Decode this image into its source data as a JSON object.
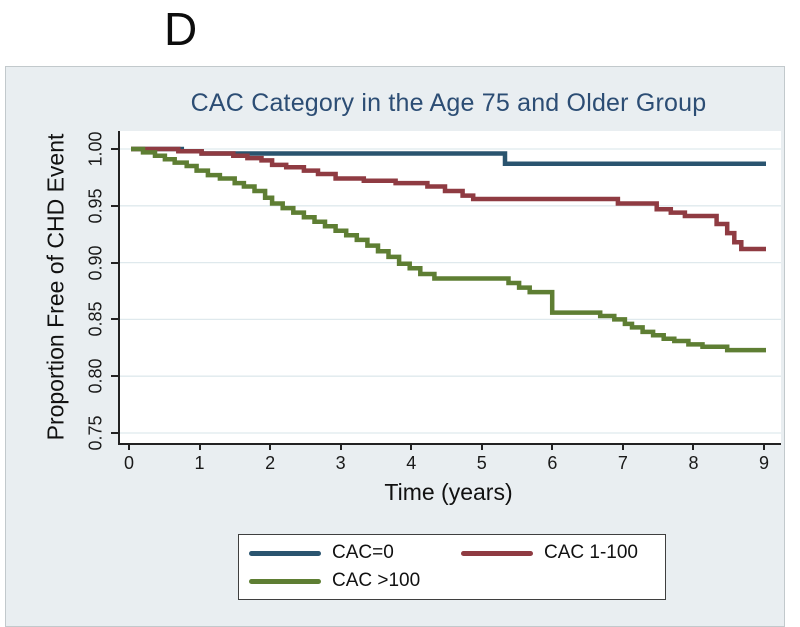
{
  "panel_label": "D",
  "figure": {
    "background_color": "#e9eef1",
    "plot_background_color": "#ffffff",
    "title_color": "#2c4d74",
    "gridline_color": "#dfe9ed",
    "axis_color": "#222222"
  },
  "chart_data": {
    "type": "line",
    "subtype": "kaplan-meier-step",
    "title": "CAC Category in the Age 75 and Older Group",
    "xlabel": "Time (years)",
    "ylabel": "Proportion Free of CHD Event",
    "xlim": [
      0,
      9
    ],
    "ylim": [
      0.75,
      1.0
    ],
    "x_ticks": [
      0,
      1,
      2,
      3,
      4,
      5,
      6,
      7,
      8,
      9
    ],
    "x_tick_labels": [
      "0",
      "1",
      "2",
      "3",
      "4",
      "5",
      "6",
      "7",
      "8",
      "9"
    ],
    "y_ticks": [
      1.0,
      0.95,
      0.9,
      0.85,
      0.8,
      0.75
    ],
    "y_tick_labels": [
      "1.00",
      "0.95",
      "0.90",
      "0.85",
      "0.80",
      "0.75"
    ],
    "grid": "horizontal",
    "legend_position": "below",
    "series": [
      {
        "name": "CAC=0",
        "color": "#2a546f",
        "points": [
          [
            0,
            1.0
          ],
          [
            0.72,
            0.998
          ],
          [
            1.0,
            0.996
          ],
          [
            5.3,
            0.987
          ],
          [
            9,
            0.987
          ]
        ]
      },
      {
        "name": "CAC 1-100",
        "color": "#8f3b42",
        "points": [
          [
            0,
            1.0
          ],
          [
            0.67,
            0.998
          ],
          [
            1.0,
            0.996
          ],
          [
            1.45,
            0.994
          ],
          [
            1.65,
            0.992
          ],
          [
            1.85,
            0.99
          ],
          [
            2.0,
            0.986
          ],
          [
            2.2,
            0.984
          ],
          [
            2.45,
            0.981
          ],
          [
            2.65,
            0.978
          ],
          [
            2.9,
            0.974
          ],
          [
            3.3,
            0.972
          ],
          [
            3.75,
            0.97
          ],
          [
            4.2,
            0.967
          ],
          [
            4.45,
            0.963
          ],
          [
            4.7,
            0.959
          ],
          [
            4.85,
            0.956
          ],
          [
            6.9,
            0.952
          ],
          [
            7.45,
            0.947
          ],
          [
            7.65,
            0.944
          ],
          [
            7.85,
            0.941
          ],
          [
            8.3,
            0.934
          ],
          [
            8.45,
            0.926
          ],
          [
            8.55,
            0.918
          ],
          [
            8.65,
            0.912
          ],
          [
            9,
            0.912
          ]
        ]
      },
      {
        "name": "CAC >100",
        "color": "#5e7e33",
        "points": [
          [
            0,
            1.0
          ],
          [
            0.17,
            0.997
          ],
          [
            0.34,
            0.994
          ],
          [
            0.48,
            0.991
          ],
          [
            0.62,
            0.988
          ],
          [
            0.79,
            0.985
          ],
          [
            0.93,
            0.981
          ],
          [
            1.09,
            0.977
          ],
          [
            1.26,
            0.974
          ],
          [
            1.47,
            0.97
          ],
          [
            1.6,
            0.967
          ],
          [
            1.75,
            0.963
          ],
          [
            1.9,
            0.957
          ],
          [
            2.0,
            0.952
          ],
          [
            2.15,
            0.948
          ],
          [
            2.3,
            0.944
          ],
          [
            2.45,
            0.94
          ],
          [
            2.6,
            0.936
          ],
          [
            2.75,
            0.932
          ],
          [
            2.9,
            0.928
          ],
          [
            3.05,
            0.924
          ],
          [
            3.2,
            0.92
          ],
          [
            3.35,
            0.915
          ],
          [
            3.5,
            0.91
          ],
          [
            3.65,
            0.905
          ],
          [
            3.8,
            0.899
          ],
          [
            3.95,
            0.895
          ],
          [
            4.1,
            0.89
          ],
          [
            4.3,
            0.886
          ],
          [
            5.35,
            0.882
          ],
          [
            5.5,
            0.878
          ],
          [
            5.65,
            0.874
          ],
          [
            5.97,
            0.856
          ],
          [
            6.65,
            0.853
          ],
          [
            6.85,
            0.85
          ],
          [
            7.0,
            0.846
          ],
          [
            7.1,
            0.843
          ],
          [
            7.25,
            0.839
          ],
          [
            7.4,
            0.836
          ],
          [
            7.55,
            0.833
          ],
          [
            7.7,
            0.831
          ],
          [
            7.9,
            0.828
          ],
          [
            8.1,
            0.826
          ],
          [
            8.45,
            0.823
          ],
          [
            9,
            0.823
          ]
        ]
      }
    ]
  },
  "legend": {
    "items": [
      {
        "label": "CAC=0"
      },
      {
        "label": "CAC 1-100"
      },
      {
        "label": "CAC >100"
      }
    ]
  }
}
